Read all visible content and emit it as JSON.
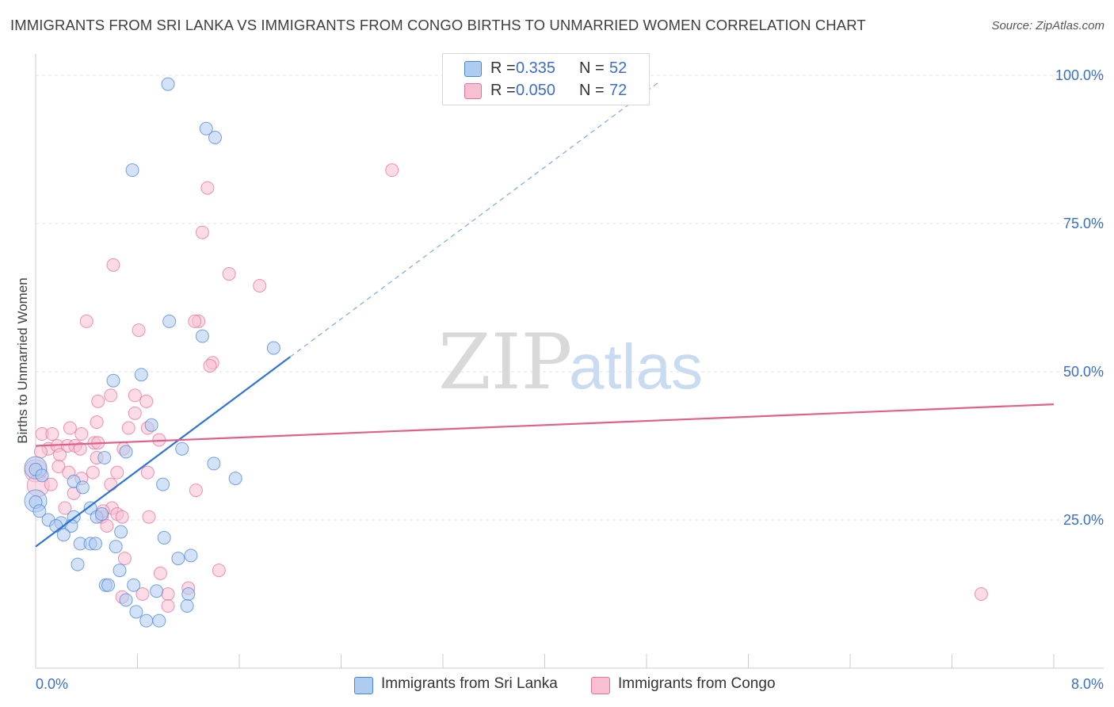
{
  "title": "IMMIGRANTS FROM SRI LANKA VS IMMIGRANTS FROM CONGO BIRTHS TO UNMARRIED WOMEN CORRELATION CHART",
  "source": "Source: ZipAtlas.com",
  "watermark": {
    "zip": "ZIP",
    "atlas": "atlas"
  },
  "colors": {
    "blue": "#4a86d8",
    "blue_fill": "#aecbf0",
    "pink": "#e8709a",
    "pink_fill": "#f7bfd1",
    "axis_text": "#3c6fc4",
    "grid": "#e3e3e3"
  },
  "legend": {
    "rows": [
      {
        "r_label": "R =",
        "r_value": "0.335",
        "n_label": "N =",
        "n_value": "52",
        "series": "sri_lanka"
      },
      {
        "r_label": "R =",
        "r_value": "0.050",
        "n_label": "N =",
        "n_value": "72",
        "series": "congo"
      }
    ]
  },
  "bottom_legend": [
    {
      "label": "Immigrants from Sri Lanka",
      "series": "sri_lanka"
    },
    {
      "label": "Immigrants from Congo",
      "series": "congo"
    }
  ],
  "chart_data": {
    "type": "scatter",
    "ylabel": "Births to Unmarried Women",
    "xlabel": "",
    "xlim": [
      0,
      8
    ],
    "ylim": [
      0,
      102
    ],
    "x_tick_labels": [
      "0.0%",
      "8.0%"
    ],
    "y_ticks": [
      25,
      50,
      75,
      100
    ],
    "y_tick_labels": [
      "25.0%",
      "50.0%",
      "75.0%",
      "100.0%"
    ],
    "grid": true,
    "series": [
      {
        "name": "Immigrants from Sri Lanka",
        "key": "sri_lanka",
        "trend": {
          "x0": 0.0,
          "y0": 20.5,
          "x1": 2.0,
          "y1": 52.5,
          "dashed_to_x": 4.9
        },
        "points": [
          [
            1.04,
            98.5
          ],
          [
            1.34,
            91.0
          ],
          [
            1.41,
            89.5
          ],
          [
            0.76,
            84.0
          ],
          [
            1.05,
            58.5
          ],
          [
            1.31,
            56.0
          ],
          [
            1.87,
            54.0
          ],
          [
            0.83,
            49.5
          ],
          [
            0.61,
            48.5
          ],
          [
            0.91,
            41.0
          ],
          [
            1.15,
            37.0
          ],
          [
            0.54,
            35.5
          ],
          [
            0.71,
            36.5
          ],
          [
            1.4,
            34.5
          ],
          [
            1.57,
            32.0
          ],
          [
            0.0,
            33.5
          ],
          [
            0.05,
            32.5
          ],
          [
            0.3,
            31.5
          ],
          [
            1.0,
            31.0
          ],
          [
            0.37,
            30.5
          ],
          [
            0.0,
            28.0
          ],
          [
            0.03,
            26.5
          ],
          [
            0.43,
            27.0
          ],
          [
            0.1,
            25.0
          ],
          [
            0.2,
            24.5
          ],
          [
            0.3,
            25.5
          ],
          [
            0.48,
            25.5
          ],
          [
            0.16,
            24.0
          ],
          [
            0.28,
            24.0
          ],
          [
            0.52,
            26.0
          ],
          [
            0.67,
            23.0
          ],
          [
            0.22,
            22.5
          ],
          [
            1.01,
            22.0
          ],
          [
            0.35,
            21.0
          ],
          [
            0.43,
            21.0
          ],
          [
            0.47,
            21.0
          ],
          [
            0.63,
            20.5
          ],
          [
            0.33,
            17.5
          ],
          [
            0.66,
            16.5
          ],
          [
            1.12,
            18.5
          ],
          [
            1.22,
            19.0
          ],
          [
            0.55,
            14.0
          ],
          [
            0.57,
            14.0
          ],
          [
            0.77,
            14.0
          ],
          [
            0.95,
            13.0
          ],
          [
            1.2,
            12.5
          ],
          [
            0.71,
            11.5
          ],
          [
            1.19,
            10.5
          ],
          [
            0.79,
            9.5
          ],
          [
            0.87,
            8.0
          ],
          [
            0.97,
            8.0
          ]
        ],
        "big_points": [
          [
            0.0,
            33.8
          ],
          [
            0.0,
            28.2
          ]
        ]
      },
      {
        "name": "Immigrants from Congo",
        "key": "congo",
        "trend": {
          "x0": 0.0,
          "y0": 37.5,
          "x1": 8.0,
          "y1": 44.5
        },
        "points": [
          [
            2.8,
            84.0
          ],
          [
            1.35,
            81.0
          ],
          [
            1.31,
            73.5
          ],
          [
            0.61,
            68.0
          ],
          [
            1.52,
            66.5
          ],
          [
            1.76,
            64.5
          ],
          [
            0.4,
            58.5
          ],
          [
            1.28,
            58.5
          ],
          [
            0.81,
            57.0
          ],
          [
            1.25,
            58.5
          ],
          [
            1.39,
            51.5
          ],
          [
            1.37,
            51.0
          ],
          [
            0.49,
            45.0
          ],
          [
            0.59,
            46.0
          ],
          [
            0.78,
            46.0
          ],
          [
            0.87,
            45.0
          ],
          [
            0.78,
            43.0
          ],
          [
            0.48,
            41.5
          ],
          [
            0.73,
            40.5
          ],
          [
            0.88,
            40.5
          ],
          [
            0.27,
            40.5
          ],
          [
            0.05,
            39.5
          ],
          [
            0.13,
            39.5
          ],
          [
            0.36,
            39.5
          ],
          [
            0.97,
            38.5
          ],
          [
            0.1,
            37.0
          ],
          [
            0.17,
            37.5
          ],
          [
            0.25,
            37.5
          ],
          [
            0.31,
            37.5
          ],
          [
            0.35,
            37.0
          ],
          [
            0.46,
            38.0
          ],
          [
            0.49,
            38.0
          ],
          [
            0.69,
            37.0
          ],
          [
            0.04,
            36.5
          ],
          [
            0.19,
            36.0
          ],
          [
            0.48,
            35.5
          ],
          [
            0.18,
            34.0
          ],
          [
            0.26,
            33.0
          ],
          [
            0.45,
            33.0
          ],
          [
            0.64,
            33.0
          ],
          [
            0.88,
            33.0
          ],
          [
            0.12,
            31.0
          ],
          [
            0.36,
            32.0
          ],
          [
            0.59,
            31.0
          ],
          [
            1.26,
            30.0
          ],
          [
            0.3,
            29.5
          ],
          [
            0.6,
            27.0
          ],
          [
            0.23,
            27.0
          ],
          [
            0.52,
            25.5
          ],
          [
            0.53,
            26.5
          ],
          [
            0.64,
            26.0
          ],
          [
            0.68,
            25.5
          ],
          [
            0.89,
            25.5
          ],
          [
            0.56,
            24.0
          ],
          [
            0.7,
            18.5
          ],
          [
            0.98,
            16.0
          ],
          [
            1.44,
            16.5
          ],
          [
            0.68,
            12.0
          ],
          [
            0.84,
            12.5
          ],
          [
            1.04,
            12.5
          ],
          [
            1.2,
            13.5
          ],
          [
            1.04,
            10.5
          ],
          [
            7.43,
            12.5
          ]
        ],
        "big_points": [
          [
            0.0,
            33.3
          ],
          [
            0.02,
            30.8
          ]
        ]
      }
    ]
  }
}
